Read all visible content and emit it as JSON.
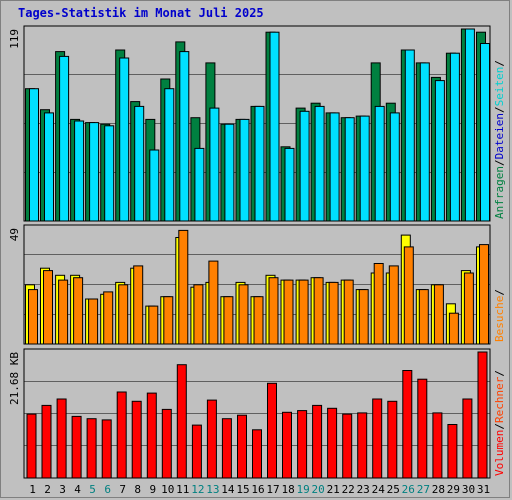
{
  "title": "Tages-Statistik im Monat Juli 2025",
  "x_tick_labels": [
    "1",
    "2",
    "3",
    "4",
    "5",
    "6",
    "7",
    "8",
    "9",
    "10",
    "11",
    "12",
    "13",
    "14",
    "15",
    "16",
    "17",
    "18",
    "19",
    "20",
    "21",
    "22",
    "23",
    "24",
    "25",
    "26",
    "27",
    "28",
    "29",
    "30",
    "31"
  ],
  "weekend_days": [
    5,
    6,
    12,
    13,
    19,
    20,
    26,
    27
  ],
  "colors": {
    "anfragen": "#008040",
    "dateien": "#00e0ff",
    "seiten": "#ffff00",
    "besuche": "#ff8000",
    "volumen": "#ff0000",
    "rechner": "#ff4000",
    "weekday_label": "#000000",
    "weekend_label": "#008080",
    "background": "#c0c0c0"
  },
  "chart_data": [
    {
      "type": "bar",
      "panel": "top",
      "y_max_label": "119",
      "ylim": [
        0,
        119
      ],
      "legend": [
        {
          "text": "Anfragen",
          "color": "#008040"
        },
        {
          "text": "/",
          "color": "#000000"
        },
        {
          "text": "Dateien",
          "color": "#0000cc"
        },
        {
          "text": "/",
          "color": "#000000"
        },
        {
          "text": "Seiten",
          "color": "#00d0d0"
        },
        {
          "text": "/",
          "color": "#000000"
        }
      ],
      "categories": [
        "1",
        "2",
        "3",
        "4",
        "5",
        "6",
        "7",
        "8",
        "9",
        "10",
        "11",
        "12",
        "13",
        "14",
        "15",
        "16",
        "17",
        "18",
        "19",
        "20",
        "21",
        "22",
        "23",
        "24",
        "25",
        "26",
        "27",
        "28",
        "29",
        "30",
        "31"
      ],
      "series": [
        {
          "name": "Anfragen",
          "values": [
            82,
            69,
            105,
            63,
            61,
            60,
            106,
            74,
            63,
            88,
            111,
            64,
            98,
            60,
            63,
            71,
            117,
            46,
            70,
            73,
            67,
            64,
            65,
            98,
            73,
            106,
            98,
            89,
            104,
            119,
            117
          ]
        },
        {
          "name": "Dateien",
          "values": [
            82,
            67,
            102,
            62,
            61,
            59,
            101,
            71,
            44,
            82,
            105,
            45,
            70,
            60,
            63,
            71,
            117,
            45,
            68,
            71,
            67,
            64,
            65,
            71,
            67,
            106,
            98,
            87,
            104,
            119,
            110
          ]
        }
      ]
    },
    {
      "type": "bar",
      "panel": "middle",
      "y_max_label": "49",
      "ylim": [
        0,
        49
      ],
      "legend": [
        {
          "text": "Besuche",
          "color": "#ff8000"
        },
        {
          "text": "/",
          "color": "#000000"
        }
      ],
      "categories": [
        "1",
        "2",
        "3",
        "4",
        "5",
        "6",
        "7",
        "8",
        "9",
        "10",
        "11",
        "12",
        "13",
        "14",
        "15",
        "16",
        "17",
        "18",
        "19",
        "20",
        "21",
        "22",
        "23",
        "24",
        "25",
        "26",
        "27",
        "28",
        "29",
        "30",
        "31"
      ],
      "series": [
        {
          "name": "Seiten",
          "values": [
            25,
            32,
            29,
            29,
            19,
            21,
            26,
            32,
            16,
            20,
            45,
            24,
            26,
            20,
            26,
            20,
            29,
            27,
            27,
            28,
            26,
            27,
            23,
            30,
            30,
            46,
            23,
            25,
            17,
            31,
            41
          ]
        },
        {
          "name": "Besuche",
          "values": [
            23,
            31,
            27,
            28,
            19,
            22,
            25,
            33,
            16,
            20,
            48,
            25,
            35,
            20,
            25,
            20,
            28,
            27,
            27,
            28,
            26,
            27,
            23,
            34,
            33,
            41,
            23,
            25,
            13,
            30,
            42
          ]
        }
      ]
    },
    {
      "type": "bar",
      "panel": "bottom",
      "y_max_label": "21.68 KB",
      "ylim": [
        0,
        21.68
      ],
      "legend": [
        {
          "text": "Volumen",
          "color": "#ff0000"
        },
        {
          "text": "/",
          "color": "#000000"
        },
        {
          "text": "Rechner",
          "color": "#ff4000"
        },
        {
          "text": "/",
          "color": "#000000"
        }
      ],
      "categories": [
        "1",
        "2",
        "3",
        "4",
        "5",
        "6",
        "7",
        "8",
        "9",
        "10",
        "11",
        "12",
        "13",
        "14",
        "15",
        "16",
        "17",
        "18",
        "19",
        "20",
        "21",
        "22",
        "23",
        "24",
        "25",
        "26",
        "27",
        "28",
        "29",
        "30",
        "31"
      ],
      "series": [
        {
          "name": "Volumen",
          "values": [
            11.0,
            12.5,
            13.6,
            10.6,
            10.2,
            10.0,
            14.8,
            13.2,
            14.6,
            11.8,
            19.5,
            9.1,
            13.4,
            10.2,
            10.8,
            8.3,
            16.3,
            11.3,
            11.6,
            12.5,
            12.0,
            11.0,
            11.2,
            13.6,
            13.2,
            18.5,
            17.0,
            11.2,
            9.2,
            13.6,
            21.68
          ]
        }
      ]
    }
  ]
}
